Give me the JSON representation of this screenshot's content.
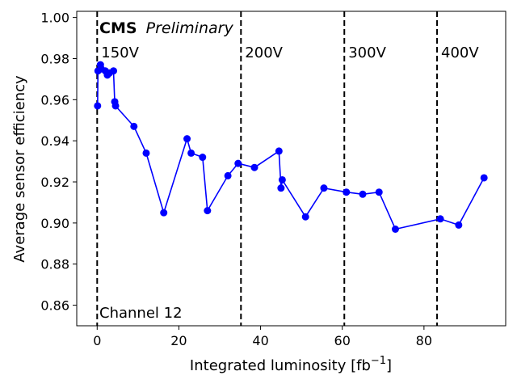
{
  "chart_data": {
    "type": "line",
    "xlabel": "Integrated luminosity [fb",
    "xlabel_sup": "−1",
    "xlabel_end": "]",
    "ylabel": "Average sensor efficiency",
    "xlim": [
      -5,
      100
    ],
    "ylim": [
      0.85,
      1.003
    ],
    "xticks": [
      0,
      20,
      40,
      60,
      80
    ],
    "yticks": [
      0.86,
      0.88,
      0.9,
      0.92,
      0.94,
      0.96,
      0.98,
      1.0
    ],
    "ytick_labels": [
      "0.86",
      "0.88",
      "0.90",
      "0.92",
      "0.94",
      "0.96",
      "0.98",
      "1.00"
    ],
    "grid": false,
    "series": [
      {
        "color": "#0000ff",
        "marker": "circle",
        "x": [
          0.1,
          0.2,
          0.8,
          1.0,
          2.0,
          2.5,
          3.0,
          4.0,
          4.3,
          4.5,
          9.0,
          12.0,
          16.3,
          22.0,
          23.0,
          25.8,
          27.0,
          32.0,
          34.5,
          38.5,
          44.5,
          45.0,
          45.3,
          51.0,
          55.5,
          61.0,
          65.0,
          69.0,
          73.0,
          84.0,
          88.5,
          94.7
        ],
        "y": [
          0.957,
          0.974,
          0.977,
          0.975,
          0.974,
          0.972,
          0.973,
          0.974,
          0.959,
          0.957,
          0.947,
          0.934,
          0.905,
          0.941,
          0.934,
          0.932,
          0.906,
          0.923,
          0.929,
          0.927,
          0.935,
          0.917,
          0.921,
          0.903,
          0.917,
          0.915,
          0.914,
          0.915,
          0.897,
          0.902,
          0.899,
          0.922
        ]
      }
    ],
    "vlines": [
      {
        "x": 0,
        "label": "150V"
      },
      {
        "x": 35.2,
        "label": "200V"
      },
      {
        "x": 60.5,
        "label": "300V"
      },
      {
        "x": 83.2,
        "label": "400V"
      }
    ],
    "annotations": {
      "cms": "CMS",
      "preliminary": "Preliminary",
      "channel": "Channel 12"
    }
  }
}
